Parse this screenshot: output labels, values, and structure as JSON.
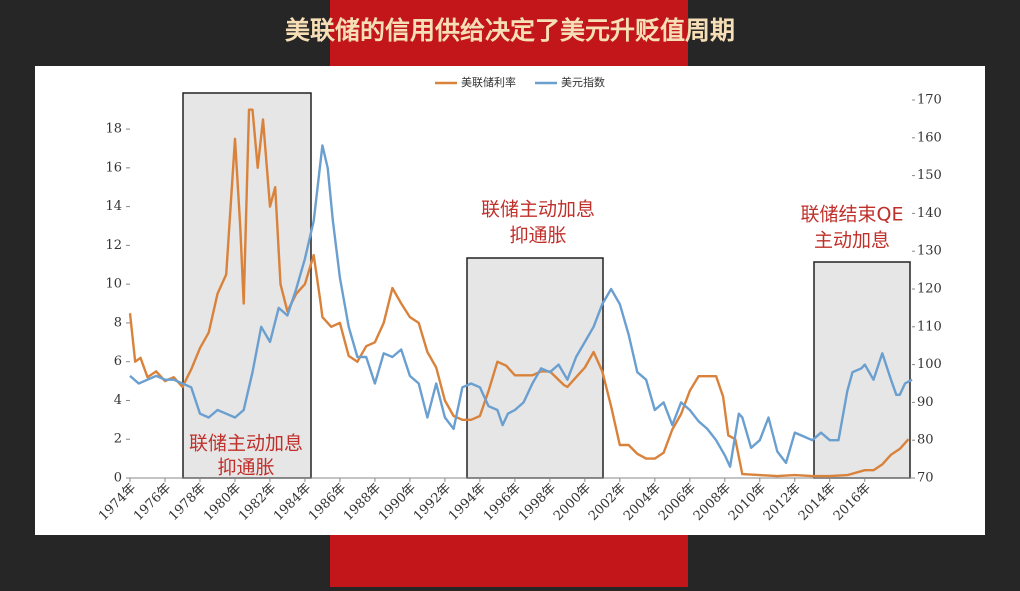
{
  "chart_data": {
    "type": "line",
    "title": "美联储的信用供给决定了美元升贬值周期",
    "xlim": [
      1974,
      2018.7
    ],
    "ylim": [
      0,
      19.5
    ],
    "y2lim": [
      70,
      170
    ],
    "yticks": [
      0,
      2,
      4,
      6,
      8,
      10,
      12,
      14,
      16,
      18
    ],
    "y2ticks": [
      70,
      80,
      90,
      100,
      110,
      120,
      130,
      140,
      150,
      160,
      170
    ],
    "xticks": [
      {
        "value": 1974,
        "label": "1974年"
      },
      {
        "value": 1976,
        "label": "1976年"
      },
      {
        "value": 1978,
        "label": "1978年"
      },
      {
        "value": 1980,
        "label": "1980年"
      },
      {
        "value": 1982,
        "label": "1982年"
      },
      {
        "value": 1984,
        "label": "1984年"
      },
      {
        "value": 1986,
        "label": "1986年"
      },
      {
        "value": 1988,
        "label": "1988年"
      },
      {
        "value": 1990,
        "label": "1990年"
      },
      {
        "value": 1992,
        "label": "1992年"
      },
      {
        "value": 1994,
        "label": "1994年"
      },
      {
        "value": 1996,
        "label": "1996年"
      },
      {
        "value": 1998,
        "label": "1998年"
      },
      {
        "value": 2000,
        "label": "2000年"
      },
      {
        "value": 2002,
        "label": "2002年"
      },
      {
        "value": 2004,
        "label": "2004年"
      },
      {
        "value": 2006,
        "label": "2006年"
      },
      {
        "value": 2008,
        "label": "2008年"
      },
      {
        "value": 2010,
        "label": "2010年"
      },
      {
        "value": 2012,
        "label": "2012年"
      },
      {
        "value": 2014,
        "label": "2014年"
      },
      {
        "value": 2016,
        "label": "2016年"
      }
    ],
    "series": [
      {
        "name": "美联储利率",
        "color": "#d9823b",
        "x": [
          1974,
          1974.3,
          1974.6,
          1975,
          1975.5,
          1976,
          1976.5,
          1977,
          1977.5,
          1978,
          1978.5,
          1979,
          1979.5,
          1980,
          1980.3,
          1980.5,
          1980.8,
          1981,
          1981.3,
          1981.6,
          1982,
          1982.3,
          1982.6,
          1983,
          1983.5,
          1984,
          1984.5,
          1984.9,
          1985,
          1985.5,
          1986,
          1986.5,
          1987,
          1987.5,
          1988,
          1988.5,
          1989,
          1989.5,
          1990,
          1990.5,
          1991,
          1991.5,
          1992,
          1992.5,
          1993,
          1993.5,
          1994,
          1994.5,
          1995,
          1995.5,
          1996,
          1996.5,
          1997,
          1997.5,
          1998,
          1998.8,
          1999,
          1999.5,
          2000,
          2000.5,
          2001,
          2001.5,
          2002,
          2002.5,
          2003,
          2003.5,
          2004,
          2004.5,
          2005,
          2005.5,
          2006,
          2006.5,
          2007,
          2007.5,
          2007.9,
          2008.2,
          2008.6,
          2009,
          2010,
          2011,
          2012,
          2013,
          2014,
          2015,
          2016,
          2016.5,
          2017,
          2017.5,
          2018,
          2018.5
        ],
        "values": [
          8.5,
          6,
          6.2,
          5.2,
          5.5,
          5,
          5.2,
          4.7,
          5.6,
          6.7,
          7.5,
          9.5,
          10.5,
          17.5,
          13,
          9,
          19,
          19,
          16,
          18.5,
          14,
          15,
          10,
          8.6,
          9.5,
          10,
          11.5,
          9,
          8.3,
          7.8,
          8,
          6.3,
          6,
          6.8,
          7,
          8,
          9.8,
          9,
          8.3,
          8,
          6.5,
          5.7,
          4,
          3.2,
          3,
          3,
          3.2,
          4.5,
          6,
          5.8,
          5.3,
          5.3,
          5.3,
          5.5,
          5.5,
          4.8,
          4.7,
          5.2,
          5.7,
          6.5,
          5.5,
          3.7,
          1.7,
          1.7,
          1.25,
          1,
          1,
          1.3,
          2.5,
          3.3,
          4.5,
          5.25,
          5.25,
          5.25,
          4.2,
          2.2,
          2,
          0.2,
          0.15,
          0.1,
          0.15,
          0.1,
          0.1,
          0.15,
          0.4,
          0.4,
          0.7,
          1.2,
          1.5,
          2
        ]
      },
      {
        "name": "美元指数",
        "color": "#6a9fd0",
        "axis": "y2",
        "x": [
          1974,
          1974.5,
          1975,
          1975.5,
          1976,
          1976.5,
          1977,
          1977.5,
          1978,
          1978.5,
          1979,
          1979.5,
          1980,
          1980.5,
          1981,
          1981.5,
          1982,
          1982.5,
          1983,
          1983.5,
          1984,
          1984.5,
          1985,
          1985.3,
          1985.6,
          1986,
          1986.5,
          1987,
          1987.5,
          1988,
          1988.5,
          1989,
          1989.5,
          1990,
          1990.5,
          1991,
          1991.5,
          1992,
          1992.5,
          1993,
          1993.5,
          1994,
          1994.5,
          1995,
          1995.3,
          1995.6,
          1996,
          1996.5,
          1997,
          1997.5,
          1998,
          1998.5,
          1999,
          1999.5,
          2000,
          2000.5,
          2001,
          2001.5,
          2002,
          2002.5,
          2003,
          2003.5,
          2004,
          2004.5,
          2005,
          2005.5,
          2006,
          2006.5,
          2007,
          2007.5,
          2008,
          2008.3,
          2008.8,
          2009,
          2009.5,
          2010,
          2010.5,
          2011,
          2011.5,
          2012,
          2012.5,
          2013,
          2013.5,
          2014,
          2014.5,
          2015,
          2015.3,
          2015.8,
          2016,
          2016.5,
          2017,
          2017.5,
          2017.8,
          2018,
          2018.3,
          2018.7
        ],
        "values": [
          97,
          95,
          96,
          97,
          96,
          96,
          95,
          94,
          87,
          86,
          88,
          87,
          86,
          88,
          98,
          110,
          106,
          115,
          113,
          120,
          128,
          138,
          158,
          152,
          138,
          123,
          110,
          102,
          102,
          95,
          103,
          102,
          104,
          97,
          95,
          86,
          95,
          86,
          83,
          94,
          95,
          94,
          89,
          88,
          84,
          87,
          88,
          90,
          95,
          99,
          98,
          100,
          96,
          102,
          106,
          110,
          116,
          120,
          116,
          108,
          98,
          96,
          88,
          90,
          84,
          90,
          88,
          85,
          83,
          80,
          76,
          73,
          87,
          86,
          78,
          80,
          86,
          77,
          74,
          82,
          81,
          80,
          82,
          80,
          80,
          93,
          98,
          99,
          100,
          96,
          103,
          96,
          92,
          92,
          95,
          96
        ]
      }
    ],
    "annotations": [
      [
        "联储主动加息",
        "抑通胀"
      ],
      [
        "联储主动加息",
        "抑通胀"
      ],
      [
        "联储结束QE",
        "主动加息"
      ]
    ]
  }
}
